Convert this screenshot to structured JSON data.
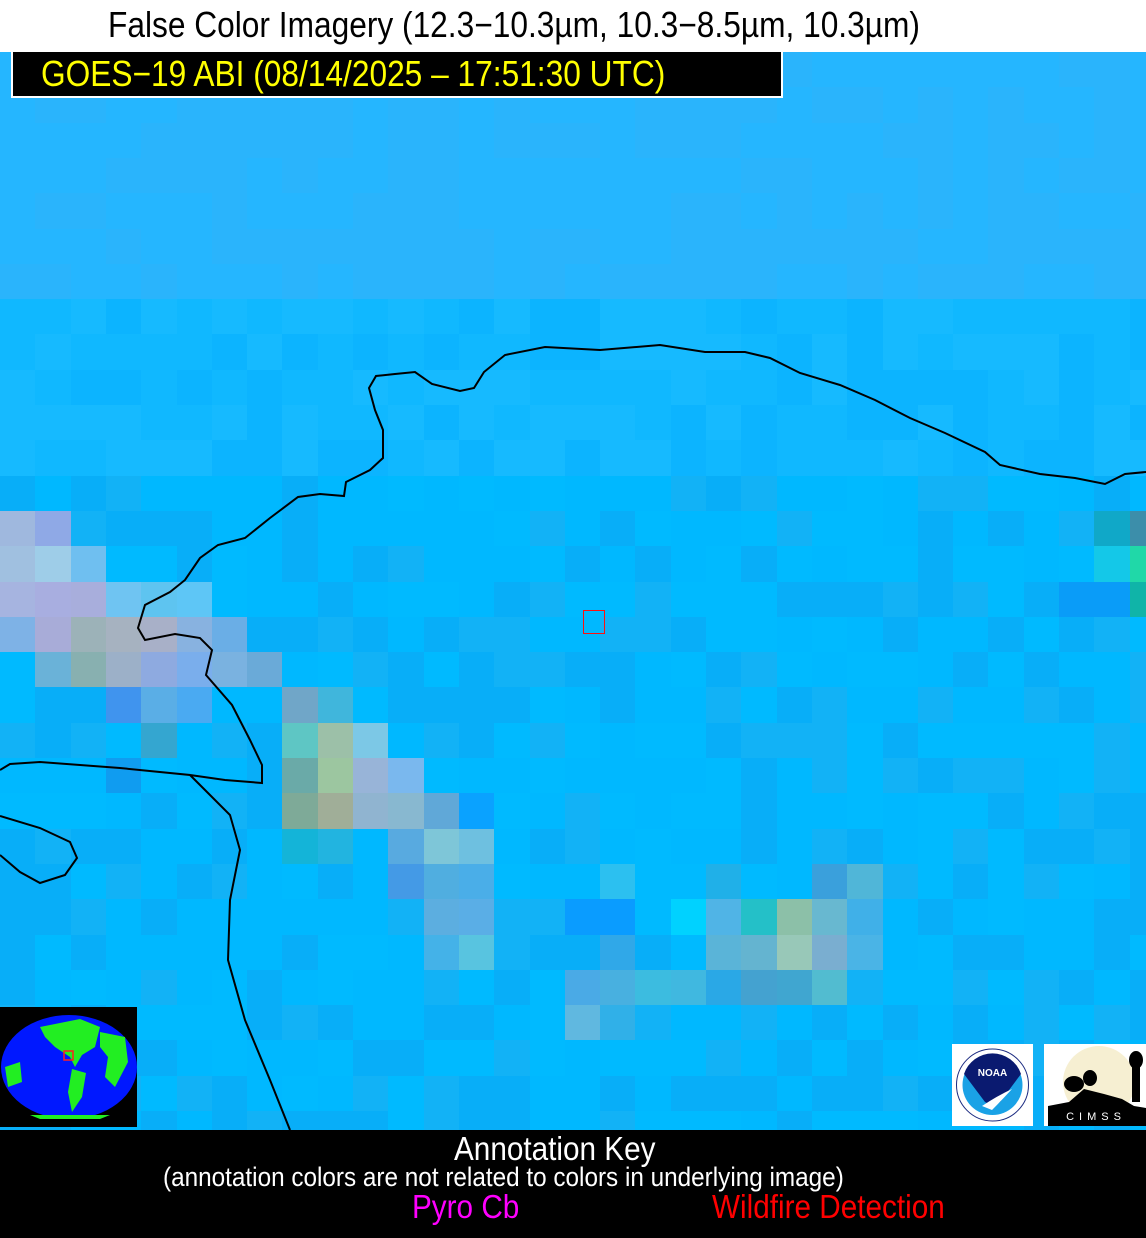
{
  "title": "False Color Imagery (12.3−10.3µm, 10.3−8.5µm, 10.3µm)",
  "subtitle": "GOES−19 ABI (08/14/2025 – 17:51:30 UTC)",
  "colors": {
    "background_water": "#1fb6ff",
    "coastline": "#000000",
    "subtitle_text": "#ffff00",
    "target_box": "#ff1010",
    "pyro_cb": "#ff00ff",
    "wildfire": "#ff0000"
  },
  "logos": {
    "noaa": "NOAA",
    "cimss": "CIMSS"
  },
  "annotation_key": {
    "heading": "Annotation Key",
    "note": "(annotation colors are not related to colors in underlying image)",
    "items": [
      {
        "label": "Pyro Cb",
        "color": "#ff00ff"
      },
      {
        "label": "Wildfire Detection",
        "color": "#ff0000"
      }
    ]
  }
}
